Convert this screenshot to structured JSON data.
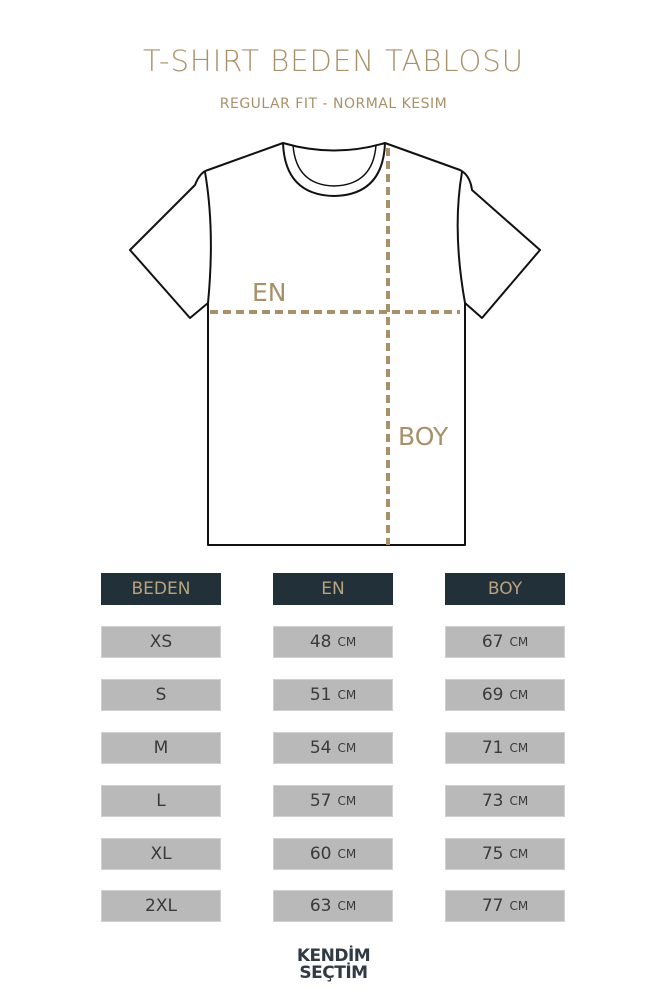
{
  "title": "T-SHIRT BEDEN TABLOSU",
  "subtitle": "REGULAR FIT - NORMAL KESIM",
  "diagram": {
    "width_label": "EN",
    "length_label": "BOY",
    "accent_color": "#a8916a"
  },
  "table": {
    "headers": [
      "BEDEN",
      "EN",
      "BOY"
    ],
    "unit": "CM",
    "rows": [
      {
        "size": "XS",
        "en": "48",
        "boy": "67"
      },
      {
        "size": "S",
        "en": "51",
        "boy": "69"
      },
      {
        "size": "M",
        "en": "54",
        "boy": "71"
      },
      {
        "size": "L",
        "en": "57",
        "boy": "73"
      },
      {
        "size": "XL",
        "en": "60",
        "boy": "75"
      },
      {
        "size": "2XL",
        "en": "63",
        "boy": "77"
      }
    ],
    "header_color": "#22303a",
    "row_color": "#b9b9b9"
  },
  "logo": {
    "line1": "KENDİM",
    "line2": "SEÇTİM"
  }
}
